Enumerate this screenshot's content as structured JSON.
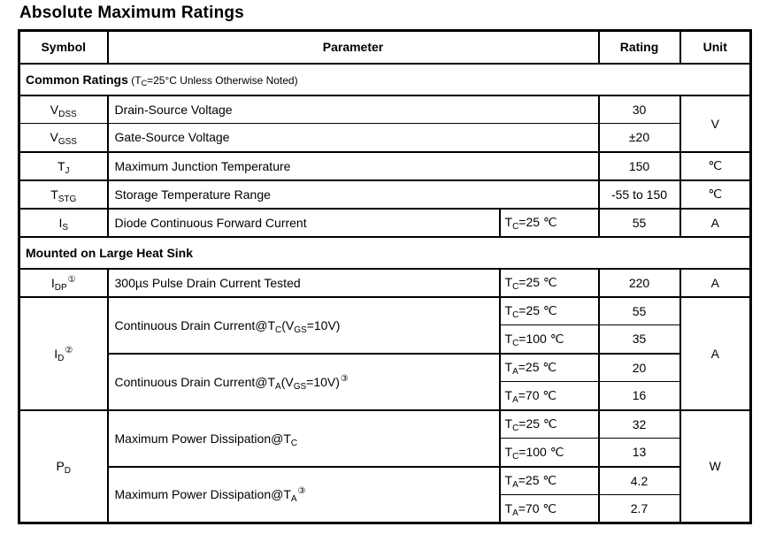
{
  "page": {
    "title": "Absolute Maximum Ratings"
  },
  "table": {
    "header": {
      "symbol": "Symbol",
      "parameter": "Parameter",
      "rating": "Rating",
      "unit": "Unit"
    },
    "sections": {
      "common_title": "Common Ratings",
      "common_note": [
        {
          "t": "t",
          "v": " (T"
        },
        {
          "t": "sub",
          "v": "C"
        },
        {
          "t": "t",
          "v": "=25°C Unless Otherwise Noted)"
        }
      ],
      "heatsink_title": "Mounted on Large Heat Sink"
    },
    "rows": {
      "vdss": {
        "symbol": [
          {
            "t": "t",
            "v": "V"
          },
          {
            "t": "sub",
            "v": "DSS"
          }
        ],
        "parameter": "Drain-Source Voltage",
        "rating": "30"
      },
      "vgss": {
        "symbol": [
          {
            "t": "t",
            "v": "V"
          },
          {
            "t": "sub",
            "v": "GSS"
          }
        ],
        "parameter": "Gate-Source Voltage",
        "rating": "±20"
      },
      "voltage_unit": "V",
      "tj": {
        "symbol": [
          {
            "t": "t",
            "v": "T"
          },
          {
            "t": "sub",
            "v": "J"
          }
        ],
        "parameter": "Maximum Junction Temperature",
        "rating": "150",
        "unit": "℃"
      },
      "tstg": {
        "symbol": [
          {
            "t": "t",
            "v": "T"
          },
          {
            "t": "sub",
            "v": "STG"
          }
        ],
        "parameter": "Storage Temperature Range",
        "rating": "-55 to 150",
        "unit": "℃"
      },
      "is": {
        "symbol": [
          {
            "t": "t",
            "v": "I"
          },
          {
            "t": "sub",
            "v": "S"
          }
        ],
        "parameter": "Diode Continuous Forward Current",
        "condition": [
          {
            "t": "t",
            "v": "T"
          },
          {
            "t": "sub",
            "v": "C"
          },
          {
            "t": "t",
            "v": "=25 ℃"
          }
        ],
        "rating": "55",
        "unit": "A"
      },
      "idp": {
        "symbol": [
          {
            "t": "t",
            "v": "I"
          },
          {
            "t": "sub",
            "v": "DP"
          },
          {
            "t": "sup",
            "v": "①"
          }
        ],
        "parameter": "300µs Pulse Drain Current Tested",
        "condition": [
          {
            "t": "t",
            "v": "T"
          },
          {
            "t": "sub",
            "v": "C"
          },
          {
            "t": "t",
            "v": "=25 ℃"
          }
        ],
        "rating": "220",
        "unit": "A"
      },
      "id": {
        "symbol": [
          {
            "t": "t",
            "v": "I"
          },
          {
            "t": "sub",
            "v": "D"
          },
          {
            "t": "sup",
            "v": "②"
          }
        ],
        "param_tc": [
          {
            "t": "t",
            "v": "Continuous Drain Current@T"
          },
          {
            "t": "sub",
            "v": "C"
          },
          {
            "t": "t",
            "v": "(V"
          },
          {
            "t": "sub",
            "v": "GS"
          },
          {
            "t": "t",
            "v": "=10V)"
          }
        ],
        "param_ta": [
          {
            "t": "t",
            "v": "Continuous Drain Current@T"
          },
          {
            "t": "sub",
            "v": "A"
          },
          {
            "t": "t",
            "v": "(V"
          },
          {
            "t": "sub",
            "v": "GS"
          },
          {
            "t": "t",
            "v": "=10V)"
          },
          {
            "t": "sup",
            "v": "③"
          }
        ],
        "cond_tc25": [
          {
            "t": "t",
            "v": "T"
          },
          {
            "t": "sub",
            "v": "C"
          },
          {
            "t": "t",
            "v": "=25 ℃"
          }
        ],
        "cond_tc100": [
          {
            "t": "t",
            "v": "T"
          },
          {
            "t": "sub",
            "v": "C"
          },
          {
            "t": "t",
            "v": "=100 ℃"
          }
        ],
        "cond_ta25": [
          {
            "t": "t",
            "v": "T"
          },
          {
            "t": "sub",
            "v": "A"
          },
          {
            "t": "t",
            "v": "=25 ℃"
          }
        ],
        "cond_ta70": [
          {
            "t": "t",
            "v": "T"
          },
          {
            "t": "sub",
            "v": "A"
          },
          {
            "t": "t",
            "v": "=70 ℃"
          }
        ],
        "rating_tc25": "55",
        "rating_tc100": "35",
        "rating_ta25": "20",
        "rating_ta70": "16",
        "unit": "A"
      },
      "pd": {
        "symbol": [
          {
            "t": "t",
            "v": "P"
          },
          {
            "t": "sub",
            "v": "D"
          }
        ],
        "param_tc": [
          {
            "t": "t",
            "v": "Maximum Power Dissipation@T"
          },
          {
            "t": "sub",
            "v": "C"
          }
        ],
        "param_ta": [
          {
            "t": "t",
            "v": "Maximum Power Dissipation@T"
          },
          {
            "t": "sub",
            "v": "A"
          },
          {
            "t": "sup",
            "v": "③"
          }
        ],
        "cond_tc25": [
          {
            "t": "t",
            "v": "T"
          },
          {
            "t": "sub",
            "v": "C"
          },
          {
            "t": "t",
            "v": "=25 ℃"
          }
        ],
        "cond_tc100": [
          {
            "t": "t",
            "v": "T"
          },
          {
            "t": "sub",
            "v": "C"
          },
          {
            "t": "t",
            "v": "=100 ℃"
          }
        ],
        "cond_ta25": [
          {
            "t": "t",
            "v": "T"
          },
          {
            "t": "sub",
            "v": "A"
          },
          {
            "t": "t",
            "v": "=25 ℃"
          }
        ],
        "cond_ta70": [
          {
            "t": "t",
            "v": "T"
          },
          {
            "t": "sub",
            "v": "A"
          },
          {
            "t": "t",
            "v": "=70 ℃"
          }
        ],
        "rating_tc25": "32",
        "rating_tc100": "13",
        "rating_ta25": "4.2",
        "rating_ta70": "2.7",
        "unit": "W"
      }
    }
  }
}
